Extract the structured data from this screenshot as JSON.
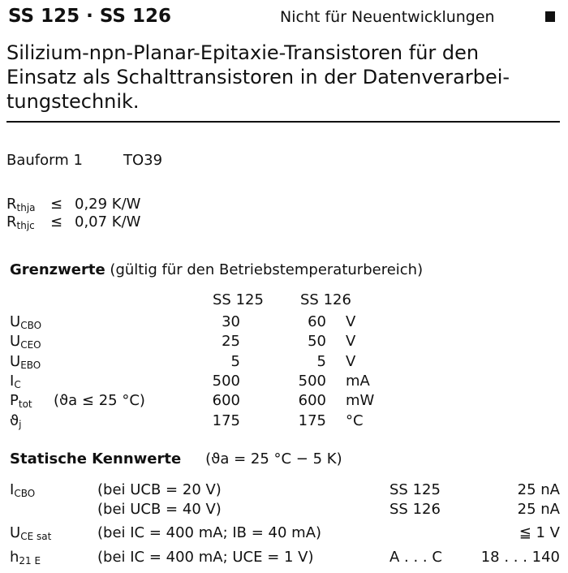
{
  "header": {
    "title": "SS 125 · SS 126",
    "note": "Nicht für Neuentwicklungen"
  },
  "description": "Silizium-npn-Planar-Epitaxie-Transistoren für den Einsatz als Schalttransistoren in der Datenverarbeitungstechnik.",
  "description_lines": [
    "Silizium-npn-Planar-Epitaxie-Transistoren für den",
    "Einsatz als Schalttransistoren in der Datenverarbei-",
    "tungstechnik."
  ],
  "package": {
    "label": "Bauform 1",
    "value": "TO39"
  },
  "thermal": [
    {
      "symbol": "R",
      "sub": "thja",
      "rel": "≤",
      "value": "0,29 K/W"
    },
    {
      "symbol": "R",
      "sub": "thjc",
      "rel": "≤",
      "value": "0,07 K/W"
    }
  ],
  "limits": {
    "heading": "Grenzwerte",
    "heading_note": "(gültig für den Betriebstemperaturbereich)",
    "columns": [
      "SS 125",
      "SS 126"
    ],
    "rows": [
      {
        "symbol": "U",
        "sub": "CBO",
        "cond": "",
        "v1": "30",
        "v2": "60",
        "unit": "V"
      },
      {
        "symbol": "U",
        "sub": "CEO",
        "cond": "",
        "v1": "25",
        "v2": "50",
        "unit": "V"
      },
      {
        "symbol": "U",
        "sub": "EBO",
        "cond": "",
        "v1": "5",
        "v2": "5",
        "unit": "V"
      },
      {
        "symbol": "I",
        "sub": "C",
        "cond": "",
        "v1": "500",
        "v2": "500",
        "unit": "mA"
      },
      {
        "symbol": "P",
        "sub": "tot",
        "cond": "(ϑa ≤ 25 °C)",
        "v1": "600",
        "v2": "600",
        "unit": "mW"
      },
      {
        "symbol": "ϑ",
        "sub": "j",
        "cond": "",
        "v1": "175",
        "v2": "175",
        "unit": "°C"
      }
    ]
  },
  "static": {
    "heading": "Statische Kennwerte",
    "heading_note": "(ϑa = 25 °C − 5 K)",
    "rows": [
      {
        "symbol": "I",
        "sub": "CBO",
        "cond": "(bei UCB = 20 V)",
        "type": "SS 125",
        "value": "25 nA"
      },
      {
        "symbol": "",
        "sub": "",
        "cond": "(bei UCB = 40 V)",
        "type": "SS 126",
        "value": "25 nA"
      },
      {
        "symbol": "U",
        "sub": "CE sat",
        "cond": "(bei IC = 400 mA; IB = 40 mA)",
        "type": "",
        "value": "≦ 1 V"
      },
      {
        "symbol": "h",
        "sub": "21 E",
        "cond": "(bei IC = 400 mA; UCE = 1 V)",
        "type": "A . . . C",
        "value": "18 . . . 140"
      }
    ]
  }
}
